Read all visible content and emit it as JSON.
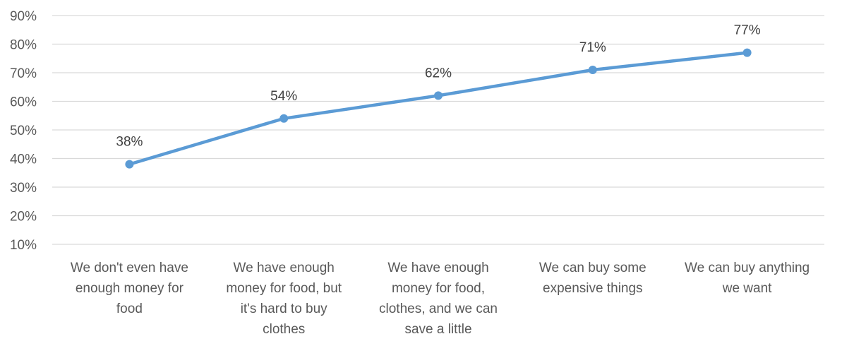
{
  "chart_data": {
    "type": "line",
    "categories": [
      [
        "We don't even have",
        "enough money for",
        "food"
      ],
      [
        "We have enough",
        "money for food, but",
        "it's hard to buy",
        "clothes"
      ],
      [
        "We have enough",
        "money for food,",
        "clothes, and we can",
        "save a little"
      ],
      [
        "We can buy some",
        "expensive things"
      ],
      [
        "We can buy anything",
        "we want"
      ]
    ],
    "series": [
      {
        "values": [
          38,
          54,
          62,
          71,
          77
        ]
      }
    ],
    "data_labels": [
      "38%",
      "54%",
      "62%",
      "71%",
      "77%"
    ],
    "ylim": [
      10,
      90
    ],
    "yticks": [
      10,
      20,
      30,
      40,
      50,
      60,
      70,
      80,
      90
    ],
    "ytick_labels": [
      "10%",
      "20%",
      "30%",
      "40%",
      "50%",
      "60%",
      "70%",
      "80%",
      "90%"
    ],
    "grid": true,
    "legend": "none",
    "colors": {
      "line": "#5b9bd5",
      "grid": "#d9d9d9",
      "text": "#595959"
    }
  }
}
